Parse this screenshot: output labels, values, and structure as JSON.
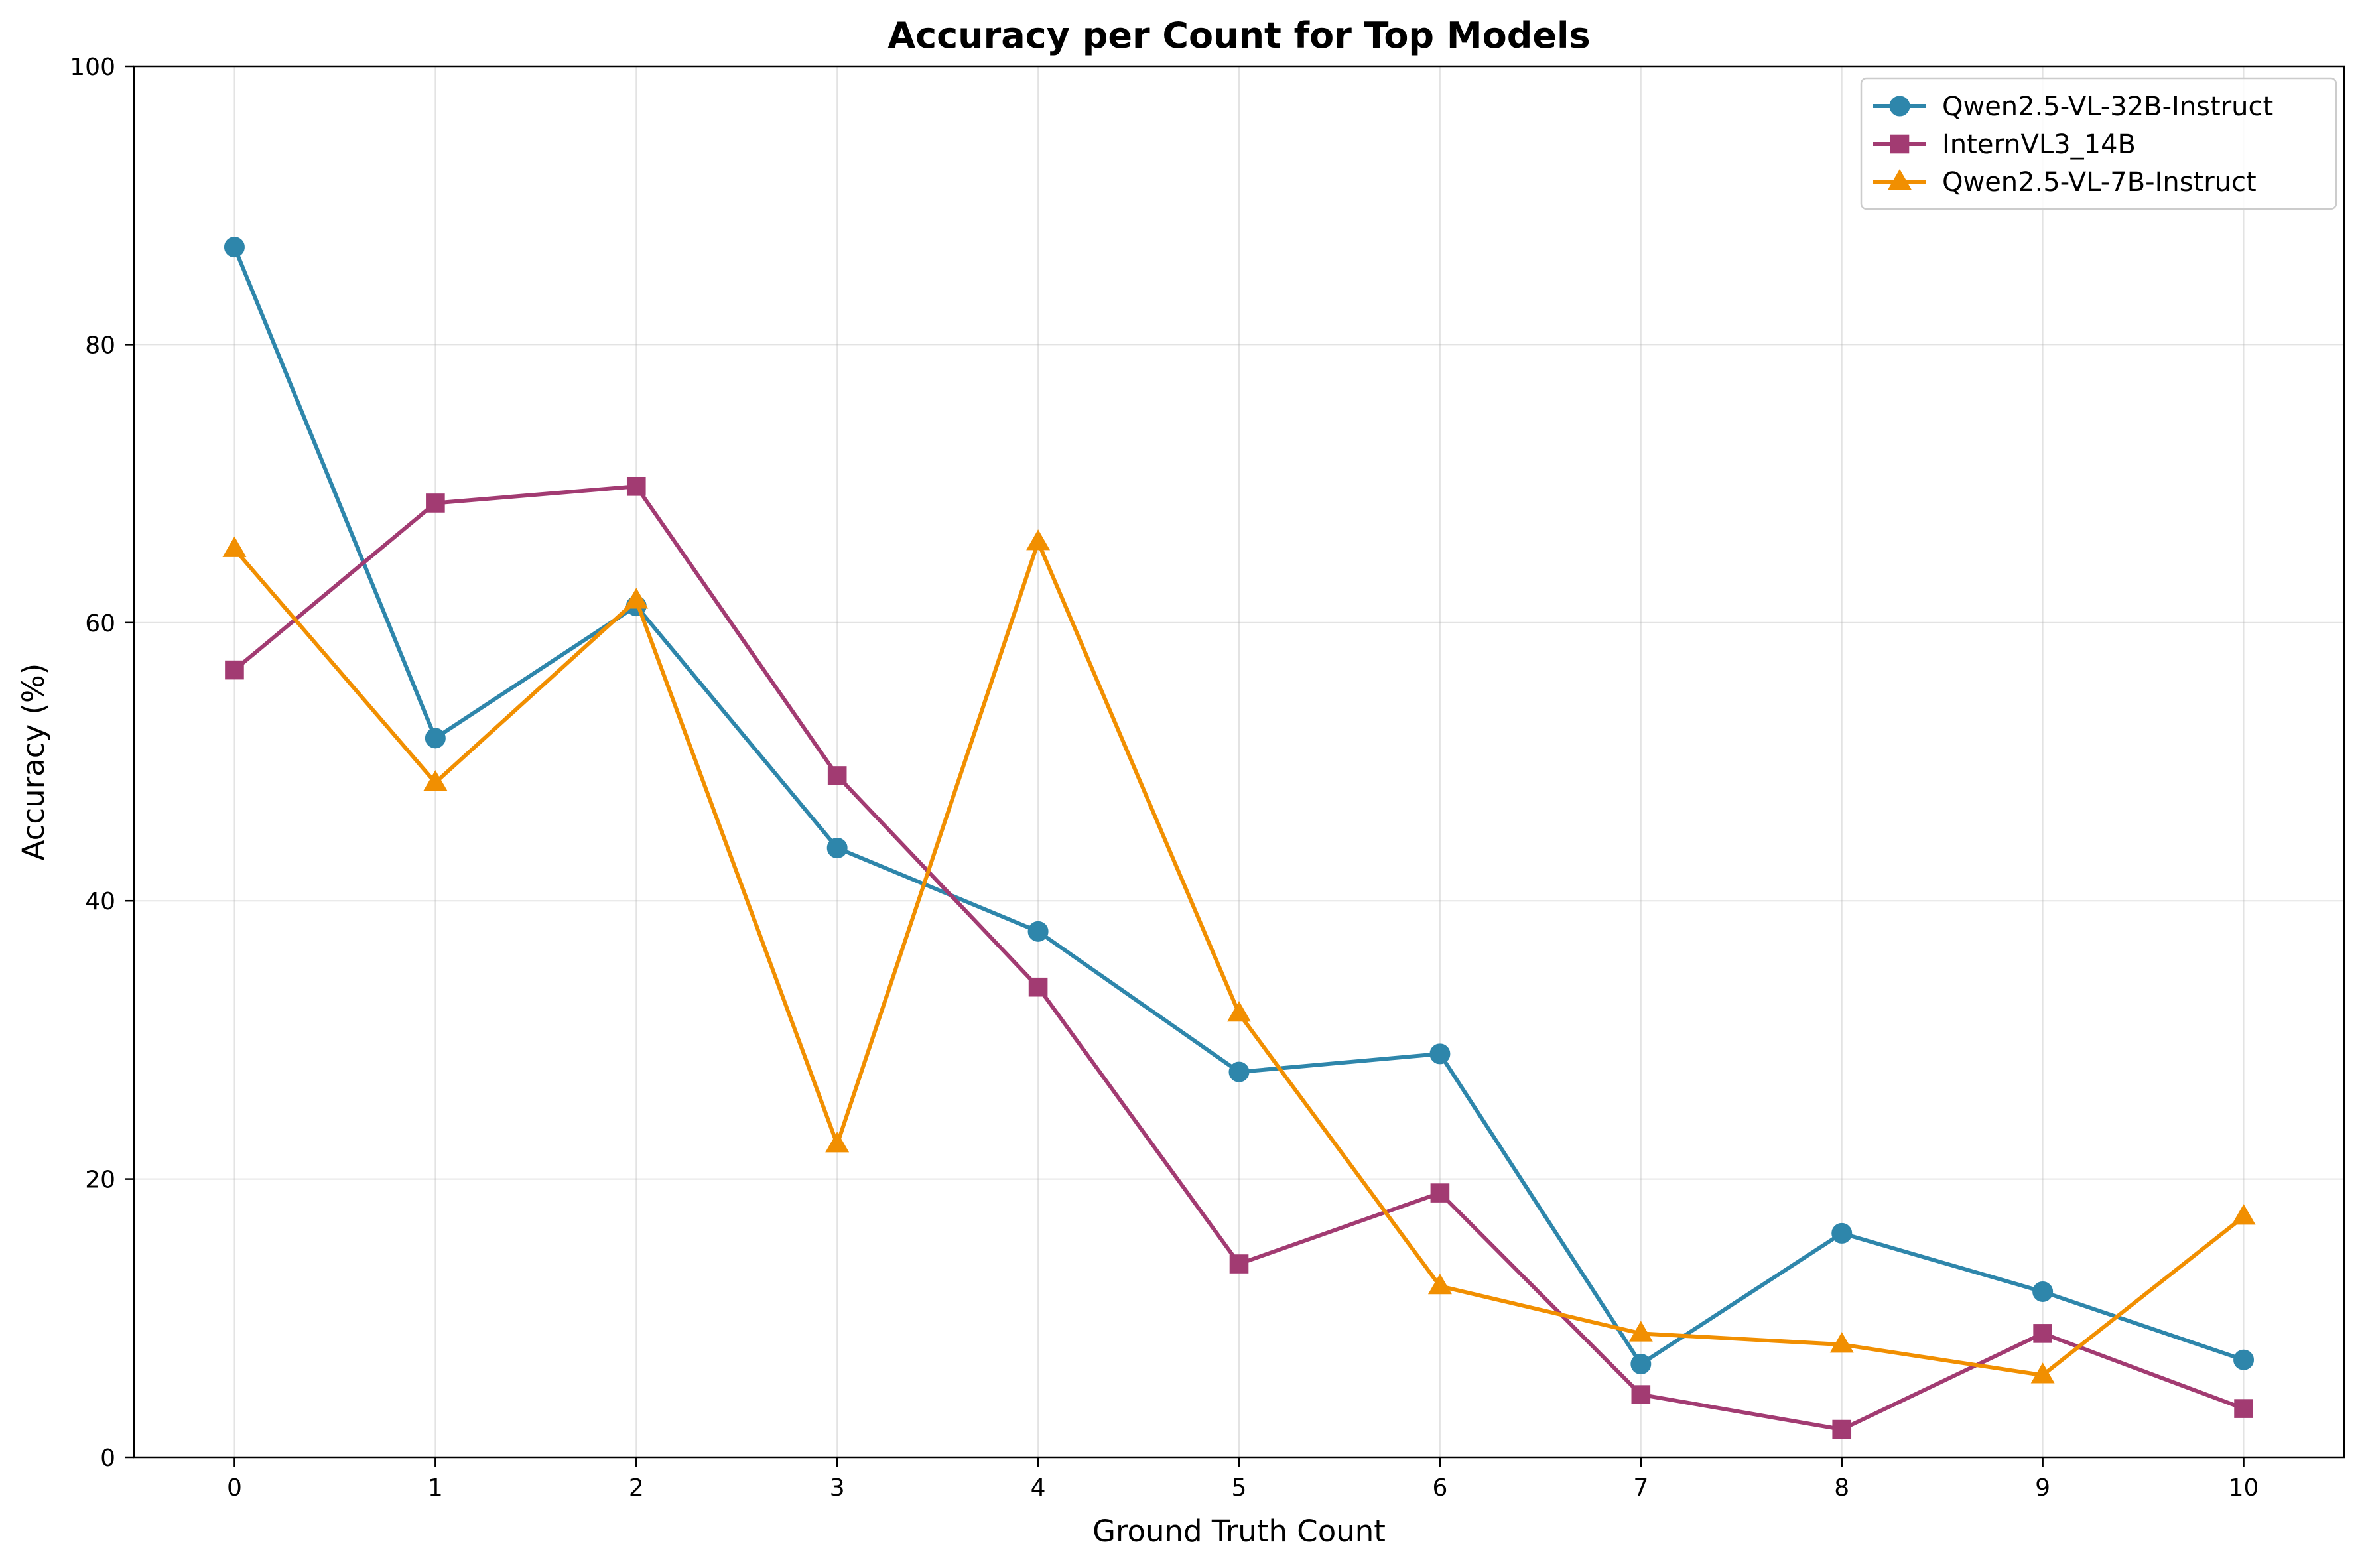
{
  "chart_data": {
    "type": "line",
    "title": "Accuracy per Count for Top Models",
    "xlabel": "Ground Truth Count",
    "ylabel": "Accuracy (%)",
    "x": [
      0,
      1,
      2,
      3,
      4,
      5,
      6,
      7,
      8,
      9,
      10
    ],
    "x_ticks": [
      "0",
      "1",
      "2",
      "3",
      "4",
      "5",
      "6",
      "7",
      "8",
      "9",
      "10"
    ],
    "xlim": [
      -0.5,
      10.5
    ],
    "ylim": [
      0,
      100
    ],
    "y_ticks": [
      "0",
      "20",
      "40",
      "60",
      "80",
      "100"
    ],
    "grid": true,
    "legend_position": "top-right",
    "series": [
      {
        "name": "Qwen2.5-VL-32B-Instruct",
        "color": "#2e86ab",
        "marker": "circle",
        "values": [
          87.0,
          51.7,
          61.2,
          43.8,
          37.8,
          27.7,
          29.0,
          6.7,
          16.1,
          11.9,
          7.0
        ]
      },
      {
        "name": "InternVL3_14B",
        "color": "#a23b72",
        "marker": "square",
        "values": [
          56.6,
          68.6,
          69.8,
          49.0,
          33.8,
          13.9,
          19.0,
          4.5,
          2.0,
          8.9,
          3.5
        ]
      },
      {
        "name": "Qwen2.5-VL-7B-Instruct",
        "color": "#f18f01",
        "marker": "triangle",
        "values": [
          65.3,
          48.5,
          61.6,
          22.5,
          65.8,
          31.9,
          12.3,
          8.9,
          8.1,
          5.9,
          17.3
        ]
      }
    ]
  }
}
